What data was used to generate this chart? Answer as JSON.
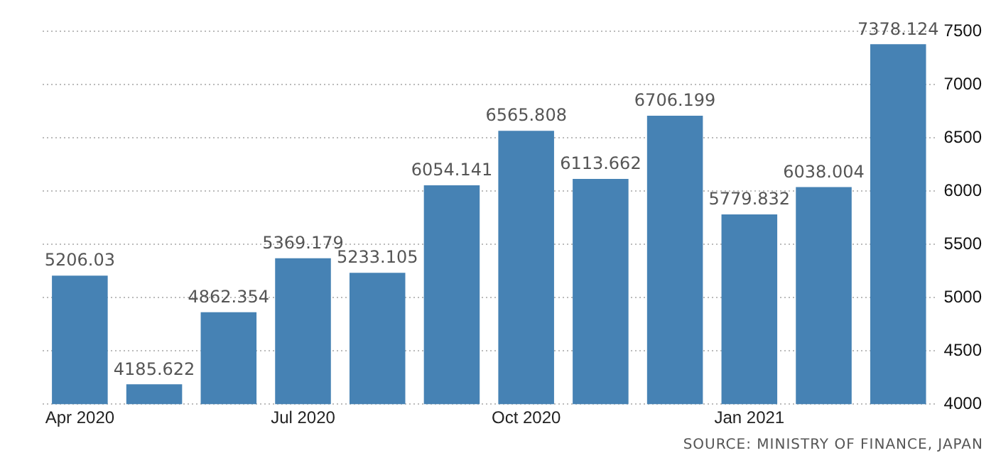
{
  "chart_data": {
    "type": "bar",
    "categories": [
      "Apr 2020",
      null,
      null,
      "Jul 2020",
      null,
      null,
      "Oct 2020",
      null,
      null,
      "Jan 2021",
      null,
      null
    ],
    "values": [
      5206.03,
      4185.622,
      4862.354,
      5369.179,
      5233.105,
      6054.141,
      6565.808,
      6113.662,
      6706.199,
      5779.832,
      6038.004,
      7378.124
    ],
    "color": "#4682b4",
    "ylim": [
      4000,
      7500
    ],
    "yticks": [
      4000,
      4500,
      5000,
      5500,
      6000,
      6500,
      7000,
      7500
    ],
    "grid": "y",
    "data_labels": true,
    "legend": false,
    "annotations": [
      "SOURCE: MINISTRY OF FINANCE, JAPAN"
    ]
  }
}
